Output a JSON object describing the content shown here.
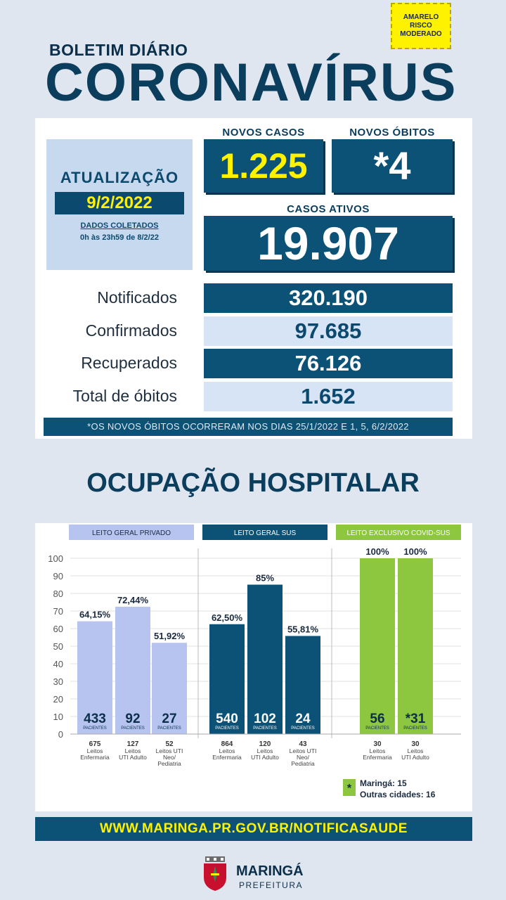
{
  "risk_badge": {
    "line1": "AMARELO",
    "line2": "RISCO",
    "line3": "MODERADO"
  },
  "header": {
    "boletim": "BOLETIM DIÁRIO",
    "title": "CORONAVÍRUS"
  },
  "update": {
    "title": "ATUALIZAÇÃO",
    "date": "9/2/2022",
    "collected": "DADOS COLETADOS",
    "period": "0h às 23h59 de 8/2/22"
  },
  "novos_casos": {
    "label": "NOVOS CASOS",
    "value": "1.225"
  },
  "novos_obitos": {
    "label": "NOVOS ÓBITOS",
    "value": "*4"
  },
  "casos_ativos": {
    "label": "CASOS ATIVOS",
    "value": "19.907"
  },
  "stats": [
    {
      "label": "Notificados",
      "value": "320.190"
    },
    {
      "label": "Confirmados",
      "value": "97.685"
    },
    {
      "label": "Recuperados",
      "value": "76.126"
    },
    {
      "label": "Total de óbitos",
      "value": "1.652"
    }
  ],
  "note": "*OS NOVOS  ÓBITOS OCORRERAM NOS DIAS 25/1/2022 E 1, 5, 6/2/2022",
  "ocupacao_title": "OCUPAÇÃO HOSPITALAR",
  "colors": {
    "dark_blue": "#0b5276",
    "light_blue": "#b8c4f0",
    "green": "#8dc63f",
    "yellow": "#fff200"
  },
  "chart_data": {
    "type": "bar",
    "ylim": [
      0,
      100
    ],
    "yticks": [
      0,
      10,
      20,
      30,
      40,
      50,
      60,
      70,
      80,
      90,
      100
    ],
    "patients_label": "PACIENTES",
    "groups": [
      {
        "name": "LEITO GERAL PRIVADO",
        "color": "#b8c4f0",
        "bars": [
          {
            "pct": 64.15,
            "label": "64,15%",
            "patients": "433",
            "beds": "675",
            "desc": [
              "Leitos",
              "Enfermaria"
            ]
          },
          {
            "pct": 72.44,
            "label": "72,44%",
            "patients": "92",
            "beds": "127",
            "desc": [
              "Leitos",
              "UTI Adulto"
            ]
          },
          {
            "pct": 51.92,
            "label": "51,92%",
            "patients": "27",
            "beds": "52",
            "desc": [
              "Leitos UTI",
              "Neo/",
              "Pediatria"
            ]
          }
        ]
      },
      {
        "name": "LEITO GERAL SUS",
        "color": "#0b5276",
        "bars": [
          {
            "pct": 62.5,
            "label": "62,50%",
            "patients": "540",
            "beds": "864",
            "desc": [
              "Leitos",
              "Enfermaria"
            ]
          },
          {
            "pct": 85,
            "label": "85%",
            "patients": "102",
            "beds": "120",
            "desc": [
              "Leitos",
              "UTI Adulto"
            ]
          },
          {
            "pct": 55.81,
            "label": "55,81%",
            "patients": "24",
            "beds": "43",
            "desc": [
              "Leitos UTI",
              "Neo/",
              "Pediatria"
            ]
          }
        ]
      },
      {
        "name": "LEITO EXCLUSIVO COVID-SUS",
        "color": "#8dc63f",
        "bars": [
          {
            "pct": 100,
            "label": "100%",
            "patients": "56",
            "beds": "30",
            "desc": [
              "Leitos",
              "Enfermaria"
            ]
          },
          {
            "pct": 100,
            "label": "100%",
            "patients": "*31",
            "beds": "30",
            "desc": [
              "Leitos",
              "UTI Adulto"
            ]
          }
        ]
      }
    ],
    "legend": {
      "marker": "*",
      "line1": "Maringá: 15",
      "line2": "Outras cidades: 16"
    }
  },
  "footer": {
    "url": "WWW.MARINGA.PR.GOV.BR/NOTIFICASAUDE",
    "name": "MARINGÁ",
    "sub": "PREFEITURA"
  }
}
